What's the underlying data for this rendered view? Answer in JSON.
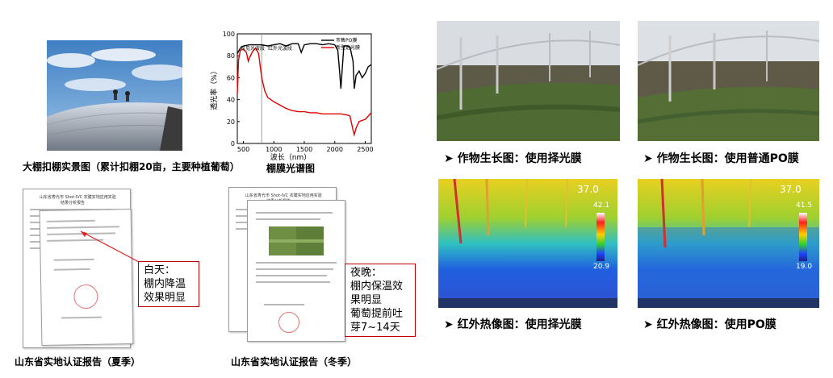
{
  "captions": {
    "greenhouse_photo": "大棚扣棚实景图（累计扣棚20亩，主要种植葡萄）",
    "spectrum_chart": "棚膜光谱图",
    "report_summer": "山东省实地认证报告（夏季）",
    "report_winter": "山东省实地认证报告（冬季）",
    "crop_selective": "作物生长图：使用择光膜",
    "crop_po": "作物生长图：使用普通PO膜",
    "ir_selective": "红外热像图：使用择光膜",
    "ir_po": "红外热像图：使用PO膜"
  },
  "callouts": {
    "summer": [
      "白天：",
      "棚内降温",
      "效果明显"
    ],
    "winter": [
      "夜晚：",
      "棚内保温效",
      "果明显",
      "葡萄提前吐",
      "芽7~14天"
    ]
  },
  "thermal": {
    "selective": {
      "max": "42.1",
      "min": "20.9",
      "top": "37.0",
      "unit": "℃"
    },
    "po": {
      "max": "41.5",
      "min": "19.0",
      "top": "37.0",
      "unit": "℃"
    }
  },
  "colors": {
    "callout_border": "#c00000",
    "arrow": "#e02020",
    "series_black": "#000000",
    "series_red": "#e00000"
  },
  "chart_data": {
    "type": "line",
    "xlabel": "波长（nm）",
    "ylabel": "透光率（%）",
    "xlim": [
      400,
      2600
    ],
    "ylim": [
      0,
      100
    ],
    "x_ticks": [
      500,
      1000,
      1500,
      2000,
      2500
    ],
    "y_ticks": [
      0,
      20,
      40,
      60,
      80,
      100
    ],
    "region_labels": [
      "可见光波段",
      "红外光波段"
    ],
    "divider_x": 800,
    "legend_position": "top-right",
    "series": [
      {
        "name": "市售PO膜",
        "x": [
          400,
          450,
          500,
          600,
          700,
          800,
          900,
          1000,
          1100,
          1200,
          1300,
          1400,
          1450,
          1500,
          1600,
          1700,
          1800,
          1900,
          2000,
          2050,
          2080,
          2100,
          2150,
          2200,
          2250,
          2300,
          2320,
          2350,
          2400,
          2450,
          2500,
          2550,
          2600
        ],
        "y": [
          82,
          87,
          89,
          90,
          90,
          90,
          89,
          90,
          91,
          89,
          91,
          91,
          83,
          90,
          91,
          91,
          90,
          91,
          90,
          85,
          65,
          50,
          89,
          89,
          88,
          75,
          50,
          62,
          66,
          60,
          64,
          70,
          72
        ]
      },
      {
        "name": "新型选光膜",
        "x": [
          400,
          420,
          450,
          500,
          550,
          580,
          600,
          650,
          700,
          750,
          800,
          850,
          900,
          1000,
          1100,
          1200,
          1300,
          1400,
          1500,
          1600,
          1700,
          1800,
          1900,
          2000,
          2100,
          2200,
          2250,
          2300,
          2320,
          2350,
          2400,
          2450,
          2500,
          2550,
          2600
        ],
        "y": [
          45,
          76,
          85,
          86,
          83,
          75,
          78,
          84,
          87,
          82,
          60,
          48,
          42,
          38,
          35,
          32,
          30,
          29,
          29,
          28,
          28,
          27,
          27,
          27,
          27,
          26,
          25,
          12,
          8,
          14,
          20,
          21,
          22,
          25,
          28
        ]
      }
    ]
  }
}
